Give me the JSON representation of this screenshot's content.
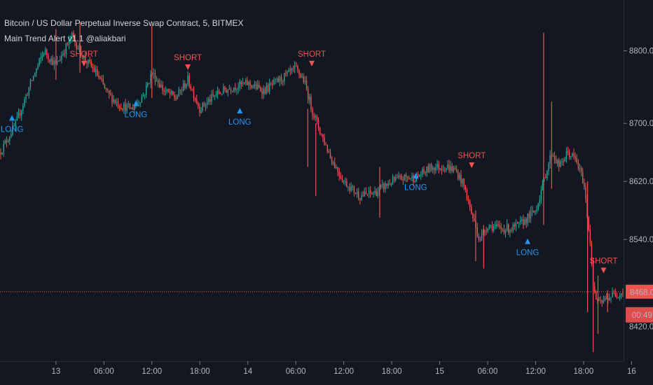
{
  "header": {
    "symbol_title": "Bitcoin / US Dollar Perpetual Inverse Swap Contract, 5, BITMEX",
    "indicator_title": "Main Trend Alert v1.1 @aliakbari"
  },
  "colors": {
    "background": "#131722",
    "text": "#b2b5be",
    "up_candle": "#26a69a",
    "down_candle": "#ef5350",
    "long_signal": "#2196f3",
    "short_signal": "#ef5350",
    "price_line": "#ef5350"
  },
  "chart_data": {
    "type": "candlestick",
    "x_tick_labels": [
      "13",
      "06:00",
      "12:00",
      "18:00",
      "14",
      "06:00",
      "12:00",
      "18:00",
      "15",
      "06:00",
      "12:00",
      "18:00",
      "16"
    ],
    "y_ticks": [
      8540,
      8620,
      8700,
      8800
    ],
    "y_tick_labels": [
      "8540.0",
      "8620.0",
      "8700.0",
      "8800.0"
    ],
    "ylim": [
      8380,
      8870
    ],
    "x_range_hours": [
      -7,
      71
    ],
    "grid": false,
    "current_price": 8468.0,
    "current_price_label": "8468.0",
    "countdown_label": "00:49",
    "hidden_tick_label": "8420.0",
    "path": [
      [
        -7,
        8660
      ],
      [
        -5,
        8700
      ],
      [
        -3,
        8760
      ],
      [
        -1.5,
        8800
      ],
      [
        0,
        8780
      ],
      [
        2,
        8820
      ],
      [
        3.5,
        8790
      ],
      [
        5,
        8770
      ],
      [
        6.5,
        8740
      ],
      [
        8,
        8725
      ],
      [
        9.5,
        8720
      ],
      [
        11,
        8740
      ],
      [
        12,
        8770
      ],
      [
        13.5,
        8745
      ],
      [
        15,
        8735
      ],
      [
        16.5,
        8760
      ],
      [
        18,
        8720
      ],
      [
        20,
        8740
      ],
      [
        22,
        8750
      ],
      [
        24,
        8755
      ],
      [
        26,
        8745
      ],
      [
        28,
        8760
      ],
      [
        30,
        8775
      ],
      [
        31,
        8760
      ],
      [
        32,
        8720
      ],
      [
        33,
        8690
      ],
      [
        34.5,
        8650
      ],
      [
        36,
        8620
      ],
      [
        38,
        8600
      ],
      [
        40,
        8605
      ],
      [
        42,
        8620
      ],
      [
        43.5,
        8625
      ],
      [
        45,
        8625
      ],
      [
        47,
        8640
      ],
      [
        49,
        8640
      ],
      [
        50,
        8635
      ],
      [
        51,
        8615
      ],
      [
        52,
        8575
      ],
      [
        53,
        8540
      ],
      [
        54,
        8560
      ],
      [
        55.5,
        8555
      ],
      [
        57,
        8555
      ],
      [
        58,
        8560
      ],
      [
        59,
        8570
      ],
      [
        60,
        8580
      ],
      [
        61,
        8620
      ],
      [
        62,
        8660
      ],
      [
        63,
        8640
      ],
      [
        64,
        8660
      ],
      [
        65,
        8650
      ],
      [
        66,
        8620
      ],
      [
        66.8,
        8540
      ],
      [
        67.3,
        8465
      ],
      [
        68,
        8450
      ],
      [
        69,
        8460
      ],
      [
        70,
        8465
      ],
      [
        71,
        8468
      ]
    ],
    "spikes": [
      [
        0,
        8830,
        8760
      ],
      [
        3,
        8840,
        8770
      ],
      [
        12,
        8835,
        8735
      ],
      [
        31.5,
        8720,
        8640
      ],
      [
        32.5,
        8700,
        8600
      ],
      [
        40.5,
        8640,
        8570
      ],
      [
        52.5,
        8580,
        8510
      ],
      [
        53.5,
        8560,
        8500
      ],
      [
        61,
        8825,
        8560
      ],
      [
        62,
        8730,
        8610
      ],
      [
        66.5,
        8620,
        8440
      ],
      [
        67.2,
        8510,
        8385
      ],
      [
        67.8,
        8490,
        8410
      ],
      [
        69,
        8470,
        8440
      ]
    ],
    "signals": [
      {
        "type": "LONG",
        "x": -5.5,
        "y": 8725
      },
      {
        "type": "SHORT",
        "x": 3.5,
        "y": 8765
      },
      {
        "type": "LONG",
        "x": 10,
        "y": 8745
      },
      {
        "type": "SHORT",
        "x": 16.5,
        "y": 8760
      },
      {
        "type": "LONG",
        "x": 23,
        "y": 8735
      },
      {
        "type": "SHORT",
        "x": 32,
        "y": 8765
      },
      {
        "type": "LONG",
        "x": 45,
        "y": 8645
      },
      {
        "type": "SHORT",
        "x": 52,
        "y": 8625
      },
      {
        "type": "LONG",
        "x": 59,
        "y": 8555
      },
      {
        "type": "SHORT",
        "x": 68.5,
        "y": 8480
      }
    ]
  }
}
